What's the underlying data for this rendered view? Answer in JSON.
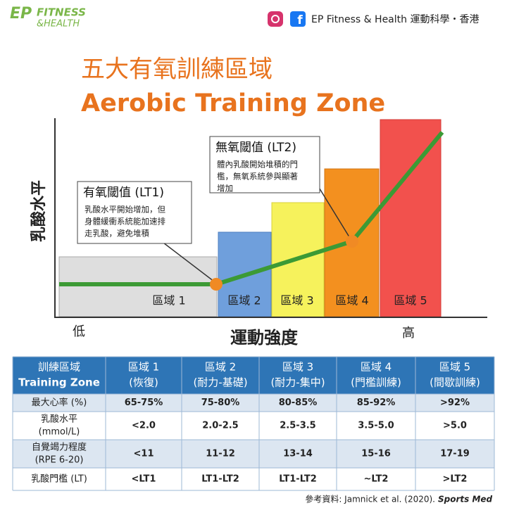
{
  "header": {
    "logo_ep": "EP",
    "logo_main": "FITNESS",
    "logo_sub": "&HEALTH",
    "brand": "EP Fitness & Health 運動科學・香港"
  },
  "title": {
    "zh": "五大有氧訓練區域",
    "en": "Aerobic Training Zone"
  },
  "diagram": {
    "y_label": "乳酸水平",
    "x_low": "低",
    "x_label": "運動強度",
    "x_high": "高",
    "zones": [
      "區域 1",
      "區域 2",
      "區域 3",
      "區域 4",
      "區域 5"
    ],
    "callouts": [
      {
        "title": "有氧閾值 (LT1)",
        "lines": [
          "乳酸水平開始增加，但",
          "身體緩衝系統能加速排",
          "走乳酸，避免堆積"
        ]
      },
      {
        "title": "無氧閾值 (LT2)",
        "lines": [
          "體內乳酸開始堆積的門",
          "檻，無氧系統參與顯著",
          "增加"
        ]
      }
    ]
  },
  "table": {
    "header": [
      [
        "訓練區域",
        "Training Zone"
      ],
      [
        "區域 1",
        "(恢復)"
      ],
      [
        "區域 2",
        "(耐力-基礎)"
      ],
      [
        "區域 3",
        "(耐力-集中)"
      ],
      [
        "區域 4",
        "(門檻訓練)"
      ],
      [
        "區域 5",
        "(間歇訓練)"
      ]
    ],
    "rows": [
      [
        [
          "最大心率 (%)"
        ],
        "65-75%",
        "75-80%",
        "80-85%",
        "85-92%",
        ">92%"
      ],
      [
        [
          "乳酸水平",
          "(mmol/L)"
        ],
        "<2.0",
        "2.0-2.5",
        "2.5-3.5",
        "3.5-5.0",
        ">5.0"
      ],
      [
        [
          "自覺竭力程度",
          "(RPE 6-20)"
        ],
        "<11",
        "11-12",
        "13-14",
        "15-16",
        "17-19"
      ],
      [
        [
          "乳酸門檻 (LT)"
        ],
        "<LT1",
        "LT1-LT2",
        "LT1-LT2",
        "~LT2",
        ">LT2"
      ]
    ]
  },
  "reference": {
    "prefix": "參考資料: Jamnick et al. (2020).",
    "journal": "Sports Med"
  }
}
